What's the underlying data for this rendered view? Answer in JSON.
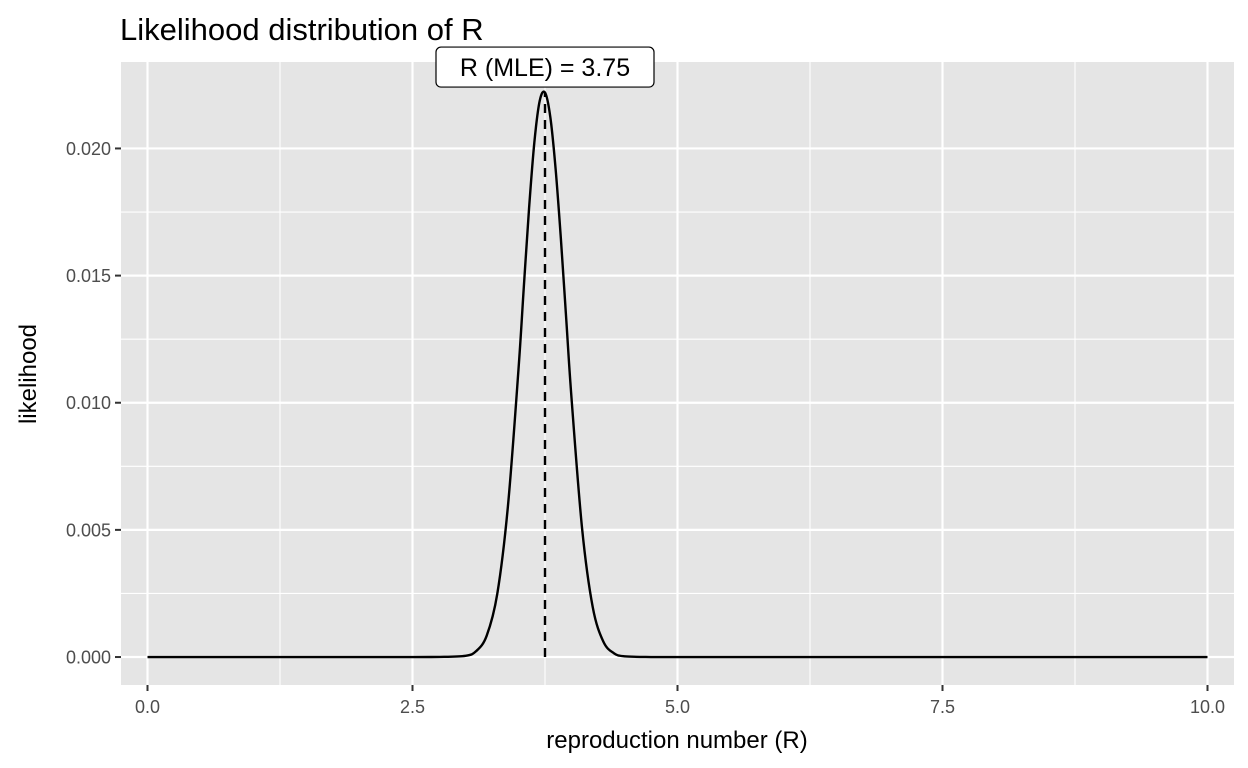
{
  "chart_data": {
    "type": "line",
    "title": "Likelihood distribution of R",
    "xlabel": "reproduction number (R)",
    "ylabel": "likelihood",
    "xlim": [
      -0.25,
      10.25
    ],
    "ylim": [
      -0.0011,
      0.0234
    ],
    "x_ticks": [
      0.0,
      2.5,
      5.0,
      7.5,
      10.0
    ],
    "x_tick_labels": [
      "0.0",
      "2.5",
      "5.0",
      "7.5",
      "10.0"
    ],
    "y_ticks": [
      0.0,
      0.005,
      0.01,
      0.015,
      0.02
    ],
    "y_tick_labels": [
      "0.000",
      "0.005",
      "0.010",
      "0.015",
      "0.020"
    ],
    "grid": true,
    "legend": "none",
    "colors": {
      "panel_background": "#e5e5e5",
      "grid": "#ffffff",
      "line": "#000000",
      "tick_text": "#4d4d4d"
    },
    "series": [
      {
        "x": [
          0.0,
          0.5,
          1.0,
          1.5,
          2.0,
          2.5,
          2.75,
          3.0,
          3.1,
          3.2,
          3.3,
          3.4,
          3.5,
          3.55,
          3.6,
          3.65,
          3.7,
          3.75,
          3.8,
          3.85,
          3.9,
          3.95,
          4.0,
          4.1,
          4.2,
          4.3,
          4.4,
          4.5,
          4.75,
          5.0,
          5.5,
          6.0,
          7.0,
          8.0,
          9.0,
          10.0
        ],
        "y": [
          0.0,
          0.0,
          0.0,
          0.0,
          0.0,
          0.0,
          3e-06,
          5e-05,
          0.00023,
          0.00084,
          0.00249,
          0.00592,
          0.01132,
          0.01454,
          0.01767,
          0.02026,
          0.02187,
          0.0222,
          0.02124,
          0.0192,
          0.01644,
          0.01331,
          0.01019,
          0.00505,
          0.00197,
          0.00061,
          0.00015,
          3e-05,
          0.0,
          0.0,
          0.0,
          0.0,
          0.0,
          0.0,
          0.0,
          0.0
        ]
      }
    ],
    "annotations": [
      {
        "type": "vline",
        "x": 3.75,
        "y_from": 0.0,
        "y_to": 0.0222,
        "style": "dashed"
      },
      {
        "type": "label",
        "text": "R (MLE) = 3.75",
        "x": 3.75,
        "y": 0.0232
      }
    ]
  }
}
